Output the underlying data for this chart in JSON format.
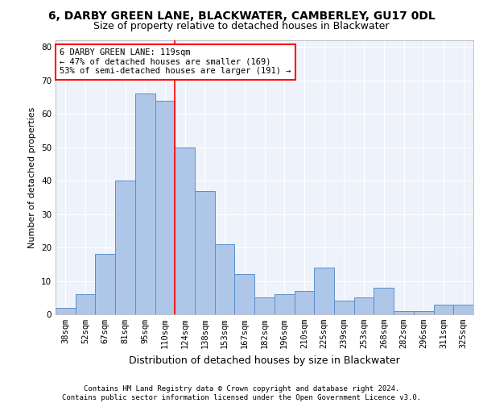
{
  "title": "6, DARBY GREEN LANE, BLACKWATER, CAMBERLEY, GU17 0DL",
  "subtitle": "Size of property relative to detached houses in Blackwater",
  "xlabel": "Distribution of detached houses by size in Blackwater",
  "ylabel": "Number of detached properties",
  "categories": [
    "38sqm",
    "52sqm",
    "67sqm",
    "81sqm",
    "95sqm",
    "110sqm",
    "124sqm",
    "138sqm",
    "153sqm",
    "167sqm",
    "182sqm",
    "196sqm",
    "210sqm",
    "225sqm",
    "239sqm",
    "253sqm",
    "268sqm",
    "282sqm",
    "296sqm",
    "311sqm",
    "325sqm"
  ],
  "values": [
    2,
    6,
    18,
    40,
    66,
    64,
    50,
    37,
    21,
    12,
    5,
    6,
    7,
    14,
    4,
    5,
    8,
    1,
    1,
    3,
    3
  ],
  "bar_color": "#aec6e8",
  "bar_edge_color": "#5b8fc9",
  "background_color": "#eef3fb",
  "grid_color": "#ffffff",
  "vline_x": 5.5,
  "vline_color": "red",
  "annotation_line1": "6 DARBY GREEN LANE: 119sqm",
  "annotation_line2": "← 47% of detached houses are smaller (169)",
  "annotation_line3": "53% of semi-detached houses are larger (191) →",
  "annotation_box_color": "white",
  "annotation_box_edge_color": "red",
  "ylim": [
    0,
    82
  ],
  "yticks": [
    0,
    10,
    20,
    30,
    40,
    50,
    60,
    70,
    80
  ],
  "footer_text": "Contains HM Land Registry data © Crown copyright and database right 2024.\nContains public sector information licensed under the Open Government Licence v3.0.",
  "title_fontsize": 10,
  "subtitle_fontsize": 9,
  "xlabel_fontsize": 9,
  "ylabel_fontsize": 8,
  "tick_fontsize": 7.5,
  "annotation_fontsize": 7.5,
  "footer_fontsize": 6.5
}
